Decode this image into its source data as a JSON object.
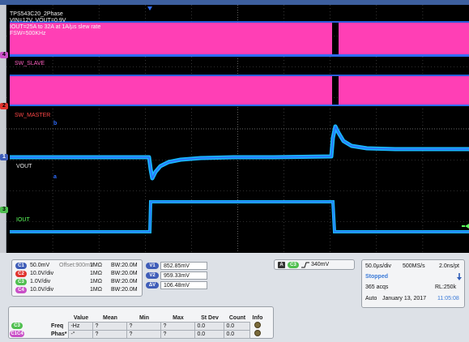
{
  "screen": {
    "info_lines": [
      "TPS543C20_2Phase",
      "VIN=12V, VOUT=0.9V",
      "IOUT=25A to 32A at 1A/µs slew rate",
      "FSW=500KHz"
    ],
    "labels": {
      "sw_slave": "SW_SLAVE",
      "sw_master": "SW_MASTER",
      "vout": "VOUT",
      "iout": "IOUT"
    },
    "markers": {
      "ch4": "4",
      "ch2": "2",
      "ch1": "1",
      "ch3": "3"
    },
    "ref_markers": {
      "b": "b",
      "a": "a"
    },
    "colors": {
      "magenta": "#ff3fb5",
      "cyan": "#18b6ff",
      "green": "#5cff5c",
      "red": "#ff4747",
      "blue": "#2f6dff"
    }
  },
  "channels": [
    {
      "chip": "C1",
      "chip_color": "#3f5db8",
      "scale": "50.0mV",
      "offset": "Offset:900mV",
      "imp": "1MΩ",
      "bw": "BW:20.0M"
    },
    {
      "chip": "C2",
      "chip_color": "#e0332e",
      "scale": "10.0V/div",
      "offset": "",
      "imp": "1MΩ",
      "bw": "BW:20.0M"
    },
    {
      "chip": "C3",
      "chip_color": "#4fbf4f",
      "scale": "1.0V/div",
      "offset": "",
      "imp": "1MΩ",
      "bw": "BW:20.0M"
    },
    {
      "chip": "C4",
      "chip_color": "#c94fc7",
      "scale": "10.0V/div",
      "offset": "",
      "imp": "1MΩ",
      "bw": "BW:20.0M"
    }
  ],
  "values": [
    {
      "chip": "V1",
      "value": "852.85mV"
    },
    {
      "chip": "V2",
      "value": "959.33mV"
    },
    {
      "chip": "ΔV",
      "value": "106.48mV"
    }
  ],
  "trigger": {
    "mode": "A",
    "source": "C3",
    "level": "340mV"
  },
  "timebase": {
    "scale": "50.0µs/div",
    "rate": "500MS/s",
    "res": "2.0ns/pt",
    "state": "Stopped",
    "acqs": "365 acqs",
    "rl": "RL:250k",
    "mode": "Auto",
    "date": "January 13, 2017",
    "time": "11:05:08"
  },
  "measurements": {
    "headers": [
      "Value",
      "Mean",
      "Min",
      "Max",
      "St Dev",
      "Count",
      "Info"
    ],
    "rows": [
      {
        "chip": "C3",
        "name": "Freq",
        "value": "-Hz",
        "mean": "?",
        "min": "?",
        "max": "?",
        "stdev": "0.0",
        "count": "0.0"
      },
      {
        "chip": "C1C4",
        "name": "Phas*",
        "value": "-°",
        "mean": "?",
        "min": "?",
        "max": "?",
        "stdev": "0.0",
        "count": "0.0"
      }
    ]
  }
}
